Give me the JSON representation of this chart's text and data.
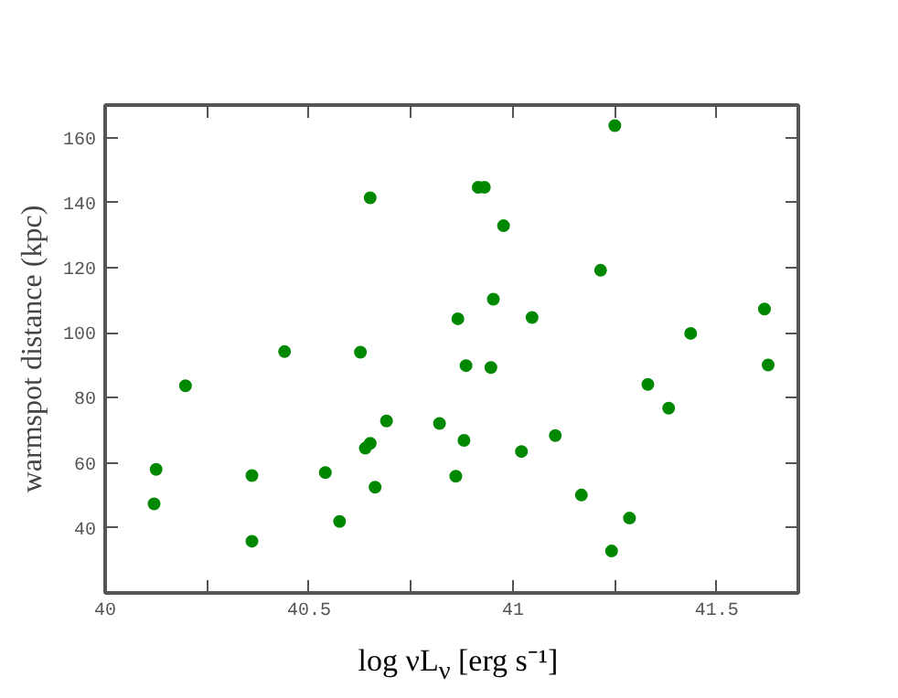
{
  "chart_data": {
    "type": "scatter",
    "xlabel": "log νL$_{ν}$ [erg s⁻¹]",
    "ylabel": "warmspot distance (kpc)",
    "x": [
      40.125,
      40.12,
      40.197,
      40.36,
      40.36,
      40.44,
      40.54,
      40.575,
      40.626,
      40.65,
      40.638,
      40.65,
      40.662,
      40.69,
      40.82,
      40.86,
      40.865,
      40.88,
      40.885,
      40.915,
      40.93,
      40.952,
      40.946,
      40.977,
      41.047,
      41.021,
      41.104,
      41.168,
      41.215,
      41.25,
      41.242,
      41.286,
      41.331,
      41.382,
      41.436,
      41.617,
      41.626
    ],
    "series": [
      {
        "color": "#008800",
        "values": [
          58,
          47.4,
          83.7,
          56.1,
          35.9,
          94.2,
          57,
          42,
          94,
          141.5,
          64.5,
          66,
          52.5,
          72.9,
          72.1,
          55.9,
          104.3,
          66.9,
          89.9,
          144.7,
          144.7,
          110.3,
          89.3,
          132.9,
          104.7,
          63.5,
          68.4,
          50.1,
          119.2,
          163.7,
          32.9,
          43,
          84.1,
          76.8,
          99.8,
          107.3,
          90.1
        ]
      }
    ],
    "xlim": [
      40,
      41.7
    ],
    "ylim": [
      20,
      170
    ],
    "xticks": [
      40,
      {
        "value": 40.25,
        "label": null
      },
      40.5,
      {
        "value": 40.75,
        "label": null
      },
      41,
      {
        "value": 41.25,
        "label": null
      },
      41.5
    ],
    "yticks": [
      40,
      60,
      80,
      100,
      120,
      140,
      160
    ],
    "grid": false,
    "marker": "circle"
  }
}
